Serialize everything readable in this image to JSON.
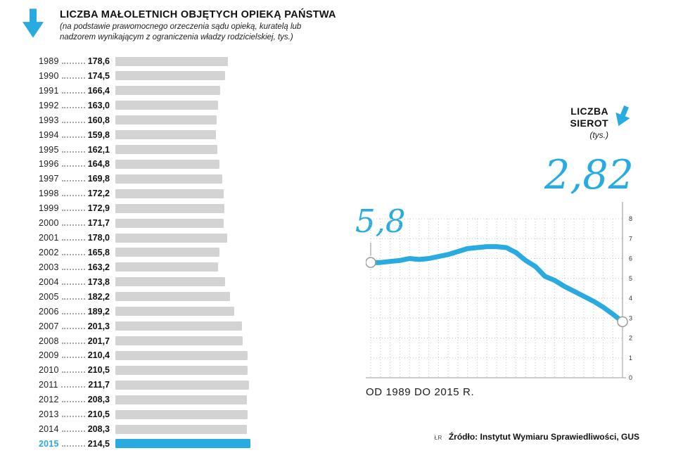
{
  "page": {
    "accent_color": "#29ABE2",
    "bar_gray_color": "#d3d3d3"
  },
  "header": {
    "title": "LICZBA MAŁOLETNICH OBJĘTYCH OPIEKĄ PAŃSTWA",
    "subtitle": "(na podstawie prawomocnego orzeczenia sądu opieką, kuratelą lub nadzorem wynikającym z ograniczenia władzy rodzicielskiej, tys.)"
  },
  "sierot_label": {
    "line1": "LICZBA",
    "line2": "SIEROT",
    "unit": "(tys.)"
  },
  "footer": {
    "initials": "ŁR",
    "source": "Źródło: Instytut Wymiaru Sprawiedliwości, GUS"
  },
  "chart_data": [
    {
      "type": "bar",
      "orientation": "horizontal",
      "title": "LICZBA MAŁOLETNICH OBJĘTYCH OPIEKĄ PAŃSTWA",
      "unit": "tys.",
      "categories": [
        "1989",
        "1990",
        "1991",
        "1992",
        "1993",
        "1994",
        "1995",
        "1996",
        "1997",
        "1998",
        "1999",
        "2000",
        "2001",
        "2002",
        "2003",
        "2004",
        "2005",
        "2006",
        "2007",
        "2008",
        "2009",
        "2010",
        "2011",
        "2012",
        "2013",
        "2014",
        "2015"
      ],
      "values": [
        178.6,
        174.5,
        166.4,
        163.0,
        160.8,
        159.8,
        162.1,
        164.8,
        169.8,
        172.2,
        172.9,
        171.7,
        178.0,
        165.8,
        163.2,
        173.8,
        182.2,
        189.2,
        201.3,
        201.7,
        210.4,
        210.5,
        211.7,
        208.3,
        210.5,
        208.3,
        214.5
      ],
      "highlight_index": 26,
      "xlim": [
        0,
        214.5
      ],
      "bar_color": "#d3d3d3",
      "highlight_color": "#29ABE2",
      "grid": false,
      "legend": "none"
    },
    {
      "type": "line",
      "title": "LICZBA SIEROT (tys.)",
      "x": [
        1989,
        1990,
        1991,
        1992,
        1993,
        1994,
        1995,
        1996,
        1997,
        1998,
        1999,
        2000,
        2001,
        2002,
        2003,
        2004,
        2005,
        2006,
        2007,
        2008,
        2009,
        2010,
        2011,
        2012,
        2013,
        2014,
        2015
      ],
      "values": [
        5.8,
        5.8,
        5.85,
        5.9,
        6.0,
        5.95,
        6.0,
        6.1,
        6.2,
        6.35,
        6.5,
        6.55,
        6.6,
        6.6,
        6.55,
        6.3,
        5.9,
        5.6,
        5.1,
        4.9,
        4.6,
        4.35,
        4.1,
        3.85,
        3.55,
        3.2,
        2.82
      ],
      "ylim": [
        0,
        8
      ],
      "yticks": [
        0,
        1,
        2,
        3,
        4,
        5,
        6,
        7,
        8
      ],
      "first_point_label": "5,8",
      "last_point_label": "2,82",
      "xlabel": "OD 1989 DO 2015 R.",
      "line_color": "#29ABE2",
      "grid": "dotted",
      "legend": "none",
      "yaxis_position": "right"
    }
  ]
}
